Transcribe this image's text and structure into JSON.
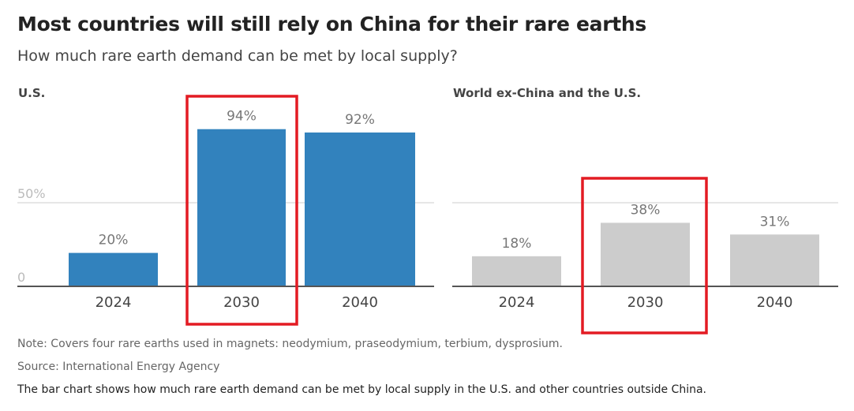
{
  "title": "Most countries will still rely on China for their rare earths",
  "subtitle": "How much rare earth demand can be met by local supply?",
  "note": "Note: Covers four rare earths used in magnets: neodymium, praseodymium, terbium, dysprosium.",
  "source": "Source: International Energy Agency",
  "description": "The bar chart shows how much rare earth demand can be met by local supply in the U.S. and other countries outside China.",
  "chart_data": [
    {
      "type": "bar",
      "title": "U.S.",
      "categories": [
        "2024",
        "2030",
        "2040"
      ],
      "values": [
        20,
        94,
        92
      ],
      "labels": [
        "20%",
        "94%",
        "92%"
      ],
      "yticks": [
        {
          "value": 0,
          "label": "0"
        },
        {
          "value": 50,
          "label": "50%"
        }
      ],
      "ylim": [
        0,
        100
      ],
      "color": "#3282bd",
      "highlighted_category": "2030",
      "highlight_color": "#e31b23"
    },
    {
      "type": "bar",
      "title": "World ex-China and the U.S.",
      "categories": [
        "2024",
        "2030",
        "2040"
      ],
      "values": [
        18,
        38,
        31
      ],
      "labels": [
        "18%",
        "38%",
        "31%"
      ],
      "ylim": [
        0,
        100
      ],
      "color": "#cccccc",
      "highlighted_category": "2030",
      "highlight_color": "#e31b23"
    }
  ]
}
